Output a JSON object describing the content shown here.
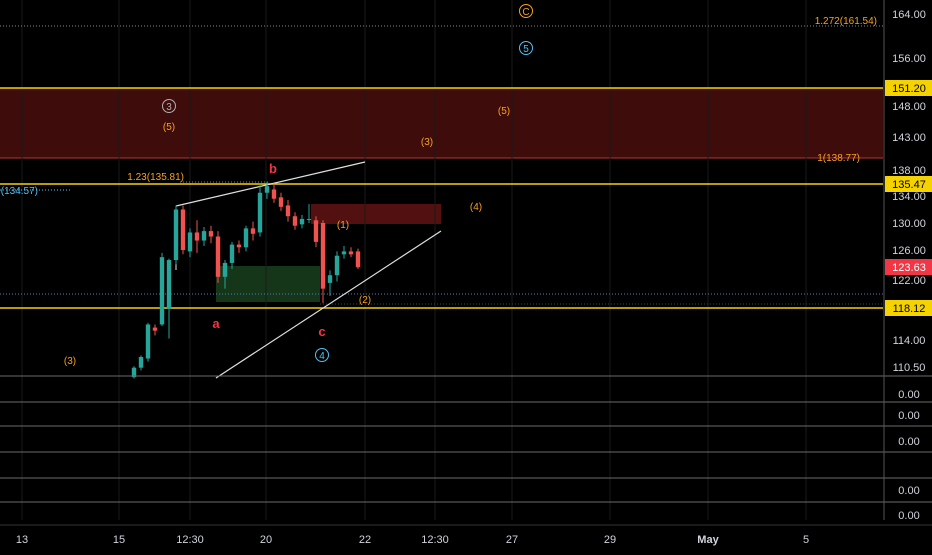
{
  "chart_data": {
    "type": "candlestick",
    "y_axis": {
      "ticks": [
        164.0,
        156.0,
        148.0,
        143.0,
        138.0,
        134.0,
        130.0,
        126.0,
        122.0,
        114.0,
        110.5
      ],
      "tick_labels": [
        "164.00",
        "156.00",
        "148.00",
        "143.00",
        "138.00",
        "134.00",
        "130.00",
        "126.00",
        "122.00",
        "114.00",
        "110.50"
      ]
    },
    "x_axis": {
      "tick_labels": [
        "13",
        "15",
        "12:30",
        "20",
        "22",
        "12:30",
        "27",
        "29",
        "May",
        "5"
      ]
    },
    "price_tags": [
      {
        "label": "151.20",
        "value": 151.2,
        "color": "#f5d300",
        "text_color": "#000000"
      },
      {
        "label": "135.47",
        "value": 135.47,
        "color": "#f5d300",
        "text_color": "#000000"
      },
      {
        "label": "123.63",
        "value": 123.63,
        "color": "#f23645",
        "text_color": "#ffffff"
      },
      {
        "label": "118.12",
        "value": 118.12,
        "color": "#f5d300",
        "text_color": "#000000"
      }
    ],
    "horizontal_levels": [
      {
        "value": 151.2,
        "color": "#f5d300"
      },
      {
        "value": 135.47,
        "color": "#f5d300"
      },
      {
        "value": 118.12,
        "color": "#f5d300"
      }
    ],
    "fib_labels": [
      {
        "text": "1.272(161.54)",
        "value": 161.54,
        "color": "#f7a21b"
      },
      {
        "text": "1(138.77)",
        "value": 138.77,
        "color": "#f7a21b"
      },
      {
        "text": "1.23(135.81)",
        "value": 135.81,
        "color": "#f7a21b"
      },
      {
        "text": "(134.57)",
        "value": 134.57,
        "color": "#4fc3f7"
      }
    ],
    "zones": [
      {
        "name": "resistance-zone",
        "top": 151.2,
        "bottom": 138.77,
        "color": "#8b1a1a"
      }
    ],
    "wave_labels": [
      {
        "text": "C",
        "circled": true,
        "color": "#f7a21b"
      },
      {
        "text": "5",
        "circled": true,
        "color": "#4fc3f7"
      },
      {
        "text": "3",
        "circled": true,
        "color": "#b0b0b0"
      },
      {
        "text": "(5)",
        "circled": false,
        "color": "#f7a21b"
      },
      {
        "text": "(5)",
        "circled": false,
        "color": "#f7a21b"
      },
      {
        "text": "(3)",
        "circled": false,
        "color": "#f7a21b"
      },
      {
        "text": "(4)",
        "circled": false,
        "color": "#f7a21b"
      },
      {
        "text": "(1)",
        "circled": false,
        "color": "#f7a21b"
      },
      {
        "text": "(2)",
        "circled": false,
        "color": "#f7a21b"
      },
      {
        "text": "(3)",
        "circled": false,
        "color": "#f7a21b"
      },
      {
        "text": "b",
        "circled": false,
        "color": "#f23645"
      },
      {
        "text": "a",
        "circled": false,
        "color": "#f23645"
      },
      {
        "text": "c",
        "circled": false,
        "color": "#f23645"
      },
      {
        "text": "4",
        "circled": true,
        "color": "#4fc3f7"
      }
    ],
    "candles": [
      {
        "o": 109.0,
        "h": 110.6,
        "l": 108.8,
        "c": 110.4
      },
      {
        "o": 110.4,
        "h": 112.0,
        "l": 110.0,
        "c": 111.8
      },
      {
        "o": 111.6,
        "h": 116.2,
        "l": 111.2,
        "c": 116.0
      },
      {
        "o": 115.6,
        "h": 116.0,
        "l": 114.6,
        "c": 115.2
      },
      {
        "o": 116.0,
        "h": 125.6,
        "l": 115.8,
        "c": 125.0
      },
      {
        "o": 118.0,
        "h": 124.8,
        "l": 114.2,
        "c": 124.6
      },
      {
        "o": 124.6,
        "h": 132.6,
        "l": 124.0,
        "c": 132.0
      },
      {
        "o": 132.0,
        "h": 132.6,
        "l": 125.4,
        "c": 126.0
      },
      {
        "o": 125.8,
        "h": 129.2,
        "l": 125.0,
        "c": 128.6
      },
      {
        "o": 128.6,
        "h": 130.4,
        "l": 125.6,
        "c": 127.4
      },
      {
        "o": 127.4,
        "h": 129.4,
        "l": 126.6,
        "c": 128.8
      },
      {
        "o": 128.8,
        "h": 129.6,
        "l": 127.0,
        "c": 128.0
      },
      {
        "o": 128.0,
        "h": 128.8,
        "l": 121.6,
        "c": 122.4
      },
      {
        "o": 122.4,
        "h": 124.6,
        "l": 120.8,
        "c": 124.2
      },
      {
        "o": 124.2,
        "h": 127.2,
        "l": 123.4,
        "c": 126.8
      },
      {
        "o": 126.8,
        "h": 127.4,
        "l": 125.6,
        "c": 126.4
      },
      {
        "o": 126.4,
        "h": 129.6,
        "l": 125.8,
        "c": 129.2
      },
      {
        "o": 129.2,
        "h": 130.2,
        "l": 127.4,
        "c": 128.4
      },
      {
        "o": 128.6,
        "h": 135.6,
        "l": 128.0,
        "c": 134.4
      },
      {
        "o": 134.4,
        "h": 135.8,
        "l": 133.6,
        "c": 135.2
      },
      {
        "o": 134.8,
        "h": 135.6,
        "l": 133.0,
        "c": 133.6
      },
      {
        "o": 133.8,
        "h": 134.4,
        "l": 131.8,
        "c": 132.4
      },
      {
        "o": 132.6,
        "h": 133.4,
        "l": 130.2,
        "c": 131.0
      },
      {
        "o": 131.0,
        "h": 131.6,
        "l": 129.0,
        "c": 129.6
      },
      {
        "o": 129.8,
        "h": 131.2,
        "l": 129.2,
        "c": 130.6
      },
      {
        "o": 130.6,
        "h": 132.8,
        "l": 130.0,
        "c": 130.6
      },
      {
        "o": 130.4,
        "h": 131.0,
        "l": 126.4,
        "c": 127.2
      },
      {
        "o": 130.0,
        "h": 130.4,
        "l": 118.8,
        "c": 120.8
      },
      {
        "o": 121.6,
        "h": 123.2,
        "l": 119.8,
        "c": 122.6
      },
      {
        "o": 122.6,
        "h": 125.8,
        "l": 121.8,
        "c": 125.2
      },
      {
        "o": 125.4,
        "h": 126.6,
        "l": 124.8,
        "c": 125.8
      },
      {
        "o": 125.8,
        "h": 126.4,
        "l": 125.0,
        "c": 125.4
      },
      {
        "o": 125.8,
        "h": 126.2,
        "l": 123.4,
        "c": 123.6
      }
    ],
    "lower_panes": [
      {
        "value_label": "0.00"
      },
      {
        "value_label": "0.00"
      },
      {
        "value_label": "0.00"
      },
      {
        "value_label": "0.00"
      },
      {
        "value_label": "0.00"
      }
    ]
  }
}
